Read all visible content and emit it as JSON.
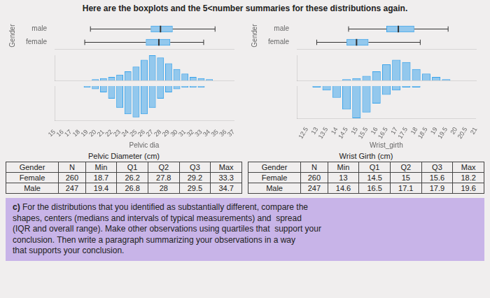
{
  "title": "Here are the boxplots and the 5<number summaries for these distributions again.",
  "bg_color": "#f0eeee",
  "chart_data": [
    {
      "type": "boxplot",
      "categories": [
        "male",
        "female"
      ],
      "values": [
        {
          "low": 19.4,
          "q1": 26.8,
          "median": 28.0,
          "q3": 29.5,
          "high": 34.7
        },
        {
          "low": 18.7,
          "q1": 26.2,
          "median": 27.8,
          "q3": 29.2,
          "high": 33.3
        }
      ],
      "xlim": [
        15,
        37
      ],
      "ylabel": "Gender",
      "tick_labels": "y",
      "grid": false
    },
    {
      "type": "bar",
      "x": [
        20,
        21,
        22,
        23,
        24,
        25,
        26,
        27,
        28,
        29,
        30,
        31,
        32,
        33,
        34
      ],
      "values": [
        1,
        2,
        3,
        5,
        8,
        12,
        18,
        22,
        20,
        15,
        10,
        6,
        3,
        2,
        1
      ],
      "xlim": [
        15,
        37
      ],
      "ylim": [
        0,
        22
      ],
      "tick_labels": false,
      "grid": false
    },
    {
      "type": "bar",
      "x": [
        19,
        20,
        21,
        22,
        23,
        24,
        25,
        26,
        27,
        28,
        29,
        30,
        31,
        32,
        33
      ],
      "values": [
        1,
        2,
        4,
        8,
        14,
        18,
        20,
        18,
        14,
        8,
        4,
        2,
        1,
        1,
        1
      ],
      "xlim": [
        15,
        37
      ],
      "ylim": [
        22,
        0
      ],
      "xticks": [
        15,
        16,
        17,
        18,
        19,
        20,
        21,
        22,
        23,
        24,
        25,
        26,
        27,
        28,
        29,
        30,
        31,
        32,
        33,
        34,
        35,
        36,
        37
      ],
      "xlabel": "Pelvic dia",
      "tick_labels": "x",
      "grid": false
    },
    {
      "type": "boxplot",
      "categories": [
        "male",
        "female"
      ],
      "values": [
        {
          "low": 14.6,
          "q1": 16.5,
          "median": 17.1,
          "q3": 17.9,
          "high": 19.6
        },
        {
          "low": 13.0,
          "q1": 14.5,
          "median": 15.0,
          "q3": 15.6,
          "high": 18.2
        }
      ],
      "xlim": [
        12,
        21
      ],
      "ylabel": "Gender",
      "tick_labels": "y",
      "grid": false
    },
    {
      "type": "bar",
      "x": [
        14.5,
        15,
        15.5,
        16,
        16.5,
        17,
        17.5,
        18,
        18.5,
        19,
        19.5
      ],
      "values": [
        1,
        2,
        4,
        8,
        14,
        18,
        16,
        10,
        6,
        3,
        1
      ],
      "xlim": [
        12,
        21
      ],
      "ylim": [
        0,
        22
      ],
      "tick_labels": false,
      "grid": false
    },
    {
      "type": "bar",
      "x": [
        13,
        13.5,
        14,
        14.5,
        15,
        15.5,
        16,
        16.5,
        17,
        17.5,
        18
      ],
      "values": [
        1,
        3,
        8,
        16,
        22,
        18,
        12,
        6,
        3,
        1,
        1
      ],
      "xlim": [
        12,
        21
      ],
      "ylim": [
        22,
        0
      ],
      "xticks": [
        12.5,
        13,
        13.5,
        14,
        14.5,
        15,
        15.5,
        16,
        16.5,
        17,
        17.5,
        18,
        18.5,
        19,
        19.5,
        20,
        20.5,
        21
      ],
      "xlabel": "Wrist_girth",
      "tick_labels": "x",
      "grid": false
    }
  ],
  "tables": [
    {
      "title": "Pelvic Diameter (cm)",
      "headers": [
        "Gender",
        "N",
        "Min",
        "Q1",
        "Q2",
        "Q3",
        "Max"
      ],
      "rows": [
        [
          "Female",
          "260",
          "18.7",
          "26.2",
          "27.8",
          "29.2",
          "33.3"
        ],
        [
          "Male",
          "247",
          "19.4",
          "26.8",
          "28",
          "29.5",
          "34.7"
        ]
      ]
    },
    {
      "title": "Wrist Girth (cm)",
      "headers": [
        "Gender",
        "N",
        "Min",
        "Q1",
        "Q2",
        "Q3",
        "Max"
      ],
      "rows": [
        [
          "Female",
          "260",
          "13",
          "14.5",
          "15",
          "15.6",
          "18.2"
        ],
        [
          "Male",
          "247",
          "14.6",
          "16.5",
          "17.1",
          "17.9",
          "19.6"
        ]
      ]
    }
  ],
  "footnote": {
    "label": "c)",
    "text": " For the distributions that you identified as substantially different, compare the\nshapes, centers (medians and intervals of typical measurements) and  spread\n(IQR and overall range). Make other observations using quartiles that  support your\nconclusion. Then write a paragraph summarizing your observations in a way\nthat supports your conclusion.",
    "color": "#c8b4e8"
  }
}
